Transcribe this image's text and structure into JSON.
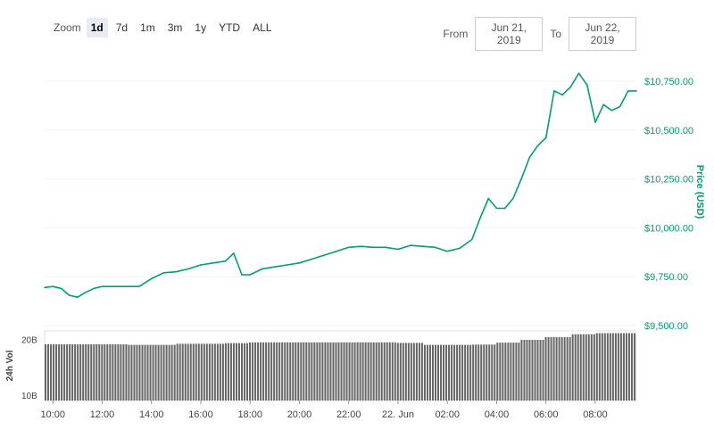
{
  "toolbar": {
    "zoom_label": "Zoom",
    "zoom_options": [
      "1d",
      "7d",
      "1m",
      "3m",
      "1y",
      "YTD",
      "ALL"
    ],
    "active_zoom": "1d",
    "from_label": "From",
    "from_value": "Jun 21, 2019",
    "to_label": "To",
    "to_value": "Jun 22, 2019"
  },
  "colors": {
    "price_line": "#009e73",
    "volume_bar": "#666666"
  },
  "chart_data": [
    {
      "type": "line",
      "name": "price",
      "ylabel": "Price (USD)",
      "yticks": [
        "$9,500.00",
        "$9,750.00",
        "$10,000.00",
        "$10,250.00",
        "$10,500.00",
        "$10,750.00"
      ],
      "ylim": [
        9500,
        10800
      ],
      "xlim": [
        "2019-06-21T09:40",
        "2019-06-22T09:40"
      ],
      "xticks": [
        "10:00",
        "12:00",
        "14:00",
        "16:00",
        "18:00",
        "20:00",
        "22:00",
        "22. Jun",
        "02:00",
        "04:00",
        "06:00",
        "08:00"
      ],
      "x": [
        "2019-06-21T09:40",
        "2019-06-21T10:00",
        "2019-06-21T10:20",
        "2019-06-21T10:40",
        "2019-06-21T11:00",
        "2019-06-21T11:20",
        "2019-06-21T11:40",
        "2019-06-21T12:00",
        "2019-06-21T12:30",
        "2019-06-21T13:00",
        "2019-06-21T13:30",
        "2019-06-21T14:00",
        "2019-06-21T14:30",
        "2019-06-21T15:00",
        "2019-06-21T15:30",
        "2019-06-21T16:00",
        "2019-06-21T16:30",
        "2019-06-21T17:00",
        "2019-06-21T17:20",
        "2019-06-21T17:40",
        "2019-06-21T18:00",
        "2019-06-21T18:30",
        "2019-06-21T19:00",
        "2019-06-21T19:30",
        "2019-06-21T20:00",
        "2019-06-21T20:30",
        "2019-06-21T21:00",
        "2019-06-21T21:30",
        "2019-06-21T22:00",
        "2019-06-21T22:30",
        "2019-06-21T23:00",
        "2019-06-21T23:30",
        "2019-06-22T00:00",
        "2019-06-22T00:30",
        "2019-06-22T01:00",
        "2019-06-22T01:30",
        "2019-06-22T02:00",
        "2019-06-22T02:30",
        "2019-06-22T03:00",
        "2019-06-22T03:20",
        "2019-06-22T03:40",
        "2019-06-22T04:00",
        "2019-06-22T04:20",
        "2019-06-22T04:40",
        "2019-06-22T05:00",
        "2019-06-22T05:20",
        "2019-06-22T05:40",
        "2019-06-22T06:00",
        "2019-06-22T06:20",
        "2019-06-22T06:40",
        "2019-06-22T07:00",
        "2019-06-22T07:20",
        "2019-06-22T07:40",
        "2019-06-22T08:00",
        "2019-06-22T08:20",
        "2019-06-22T08:40",
        "2019-06-22T09:00",
        "2019-06-22T09:20",
        "2019-06-22T09:40"
      ],
      "y": [
        9695,
        9700,
        9690,
        9655,
        9645,
        9670,
        9690,
        9700,
        9700,
        9700,
        9700,
        9740,
        9770,
        9775,
        9790,
        9810,
        9820,
        9830,
        9870,
        9760,
        9760,
        9790,
        9800,
        9810,
        9820,
        9840,
        9860,
        9880,
        9900,
        9905,
        9900,
        9900,
        9890,
        9910,
        9905,
        9900,
        9880,
        9895,
        9940,
        10050,
        10150,
        10100,
        10100,
        10150,
        10250,
        10360,
        10420,
        10460,
        10700,
        10680,
        10720,
        10790,
        10730,
        10540,
        10630,
        10600,
        10620,
        10700,
        10700
      ]
    },
    {
      "type": "bar",
      "name": "volume",
      "ylabel": "24h Vol",
      "yticks": [
        "10B",
        "20B"
      ],
      "ylim": [
        9,
        21.5
      ],
      "x": [
        "2019-06-21T09:40",
        "2019-06-21T11:00",
        "2019-06-21T13:00",
        "2019-06-21T15:00",
        "2019-06-21T17:00",
        "2019-06-21T18:00",
        "2019-06-21T20:00",
        "2019-06-21T22:00",
        "2019-06-22T00:00",
        "2019-06-22T01:00",
        "2019-06-22T02:00",
        "2019-06-22T03:00",
        "2019-06-22T04:00",
        "2019-06-22T05:00",
        "2019-06-22T06:00",
        "2019-06-22T07:00",
        "2019-06-22T08:00",
        "2019-06-22T09:40"
      ],
      "values": [
        19.1,
        19.1,
        19.0,
        19.2,
        19.3,
        19.45,
        19.45,
        19.45,
        19.35,
        19.0,
        19.0,
        19.05,
        19.4,
        19.9,
        20.4,
        20.9,
        21.1,
        21.2
      ]
    }
  ]
}
